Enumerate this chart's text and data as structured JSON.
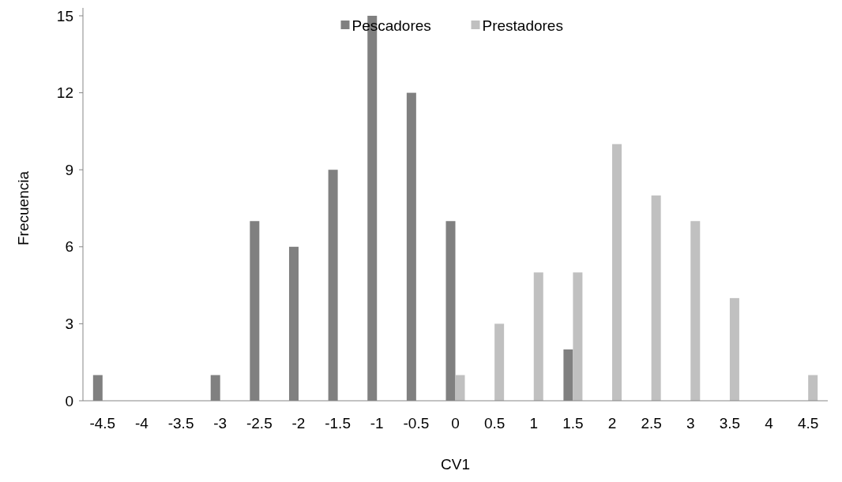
{
  "chart_data": {
    "type": "bar",
    "xlabel": "CV1",
    "ylabel": "Frecuencia",
    "categories": [
      "-4.5",
      "-4",
      "-3.5",
      "-3",
      "-2.5",
      "-2",
      "-1.5",
      "-1",
      "-0.5",
      "0",
      "0.5",
      "1",
      "1.5",
      "2",
      "2.5",
      "3",
      "3.5",
      "4",
      "4.5"
    ],
    "series": [
      {
        "name": "Pescadores",
        "color": "#808080",
        "values": [
          1,
          0,
          0,
          1,
          7,
          6,
          9,
          15,
          12,
          7,
          0,
          0,
          2,
          0,
          0,
          0,
          0,
          0,
          0
        ]
      },
      {
        "name": "Prestadores",
        "color": "#c0c0c0",
        "values": [
          0,
          0,
          0,
          0,
          0,
          0,
          0,
          0,
          0,
          1,
          3,
          5,
          5,
          10,
          8,
          7,
          4,
          0,
          1
        ]
      }
    ],
    "ylim": [
      0,
      15
    ],
    "yticks": [
      0,
      3,
      6,
      9,
      12,
      15
    ],
    "grid": false,
    "legend": "top"
  }
}
